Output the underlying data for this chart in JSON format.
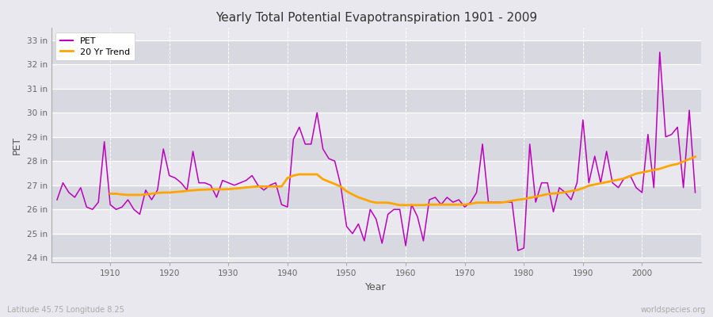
{
  "title": "Yearly Total Potential Evapotranspiration 1901 - 2009",
  "xlabel": "Year",
  "ylabel": "PET",
  "bottom_left": "Latitude 45.75 Longitude 8.25",
  "bottom_right": "worldspecies.org",
  "pet_color": "#bb00bb",
  "trend_color": "#ffa500",
  "bg_color": "#e8e8ee",
  "plot_bg_light": "#e8e8ee",
  "plot_bg_dark": "#d8d8e0",
  "ylim": [
    23.8,
    33.5
  ],
  "yticks": [
    24,
    25,
    26,
    27,
    28,
    29,
    30,
    31,
    32,
    33
  ],
  "ytick_labels": [
    "24 in",
    "25 in",
    "26 in",
    "27 in",
    "28 in",
    "29 in",
    "30 in",
    "31 in",
    "32 in",
    "33 in"
  ],
  "xlim": [
    1900,
    2010
  ],
  "xticks": [
    1910,
    1920,
    1930,
    1940,
    1950,
    1960,
    1970,
    1980,
    1990,
    2000
  ],
  "years": [
    1901,
    1902,
    1903,
    1904,
    1905,
    1906,
    1907,
    1908,
    1909,
    1910,
    1911,
    1912,
    1913,
    1914,
    1915,
    1916,
    1917,
    1918,
    1919,
    1920,
    1921,
    1922,
    1923,
    1924,
    1925,
    1926,
    1927,
    1928,
    1929,
    1930,
    1931,
    1932,
    1933,
    1934,
    1935,
    1936,
    1937,
    1938,
    1939,
    1940,
    1941,
    1942,
    1943,
    1944,
    1945,
    1946,
    1947,
    1948,
    1949,
    1950,
    1951,
    1952,
    1953,
    1954,
    1955,
    1956,
    1957,
    1958,
    1959,
    1960,
    1961,
    1962,
    1963,
    1964,
    1965,
    1966,
    1967,
    1968,
    1969,
    1970,
    1971,
    1972,
    1973,
    1974,
    1975,
    1976,
    1977,
    1978,
    1979,
    1980,
    1981,
    1982,
    1983,
    1984,
    1985,
    1986,
    1987,
    1988,
    1989,
    1990,
    1991,
    1992,
    1993,
    1994,
    1995,
    1996,
    1997,
    1998,
    1999,
    2000,
    2001,
    2002,
    2003,
    2004,
    2005,
    2006,
    2007,
    2008,
    2009
  ],
  "pet": [
    26.4,
    27.1,
    26.7,
    26.5,
    26.9,
    26.1,
    26.0,
    26.3,
    28.8,
    26.2,
    26.0,
    26.1,
    26.4,
    26.0,
    25.8,
    26.8,
    26.4,
    26.8,
    28.5,
    27.4,
    27.3,
    27.1,
    26.8,
    28.4,
    27.1,
    27.1,
    27.0,
    26.5,
    27.2,
    27.1,
    27.0,
    27.1,
    27.2,
    27.4,
    27.0,
    26.8,
    27.0,
    27.1,
    26.2,
    26.1,
    28.9,
    29.4,
    28.7,
    28.7,
    30.0,
    28.5,
    28.1,
    28.0,
    27.0,
    25.3,
    25.0,
    25.4,
    24.7,
    26.0,
    25.6,
    24.6,
    25.8,
    26.0,
    26.0,
    24.5,
    26.2,
    25.7,
    24.7,
    26.4,
    26.5,
    26.2,
    26.5,
    26.3,
    26.4,
    26.1,
    26.3,
    26.7,
    28.7,
    26.3,
    26.3,
    26.3,
    26.3,
    26.3,
    24.3,
    24.4,
    28.7,
    26.3,
    27.1,
    27.1,
    25.9,
    26.9,
    26.7,
    26.4,
    27.1,
    29.7,
    27.1,
    28.2,
    27.1,
    28.4,
    27.1,
    26.9,
    27.3,
    27.4,
    26.9,
    26.7,
    29.1,
    26.9,
    32.5,
    29.0,
    29.1,
    29.4,
    26.9,
    30.1,
    26.7
  ],
  "trend_years": [
    1910,
    1911,
    1912,
    1913,
    1914,
    1915,
    1916,
    1917,
    1918,
    1919,
    1920,
    1921,
    1922,
    1923,
    1924,
    1925,
    1926,
    1927,
    1928,
    1929,
    1930,
    1931,
    1932,
    1933,
    1934,
    1935,
    1936,
    1937,
    1938,
    1939,
    1940,
    1941,
    1942,
    1943,
    1944,
    1945,
    1946,
    1947,
    1948,
    1949,
    1950,
    1951,
    1952,
    1953,
    1954,
    1955,
    1956,
    1957,
    1958,
    1959,
    1960,
    1961,
    1962,
    1963,
    1964,
    1965,
    1966,
    1967,
    1968,
    1969,
    1970,
    1971,
    1972,
    1973,
    1974,
    1975,
    1976,
    1977,
    1978,
    1979,
    1980,
    1981,
    1982,
    1983,
    1984,
    1985,
    1986,
    1987,
    1988,
    1989,
    1990,
    1991,
    1992,
    1993,
    1994,
    1995,
    1996,
    1997,
    1998,
    1999,
    2000,
    2001,
    2002,
    2003,
    2004,
    2005,
    2006,
    2007,
    2008,
    2009
  ],
  "trend": [
    26.65,
    26.65,
    26.62,
    26.6,
    26.6,
    26.6,
    26.62,
    26.65,
    26.68,
    26.7,
    26.7,
    26.72,
    26.74,
    26.77,
    26.79,
    26.81,
    26.82,
    26.83,
    26.83,
    26.83,
    26.84,
    26.86,
    26.88,
    26.91,
    26.93,
    26.95,
    26.95,
    26.95,
    26.95,
    26.95,
    27.3,
    27.4,
    27.45,
    27.45,
    27.45,
    27.45,
    27.25,
    27.15,
    27.05,
    26.95,
    26.75,
    26.62,
    26.5,
    26.42,
    26.33,
    26.28,
    26.28,
    26.28,
    26.23,
    26.18,
    26.18,
    26.18,
    26.18,
    26.18,
    26.2,
    26.2,
    26.2,
    26.2,
    26.2,
    26.2,
    26.2,
    26.23,
    26.28,
    26.28,
    26.28,
    26.28,
    26.28,
    26.31,
    26.36,
    26.4,
    26.43,
    26.48,
    26.53,
    26.58,
    26.63,
    26.66,
    26.68,
    26.71,
    26.76,
    26.8,
    26.88,
    26.98,
    27.03,
    27.08,
    27.13,
    27.18,
    27.23,
    27.28,
    27.38,
    27.48,
    27.53,
    27.58,
    27.63,
    27.68,
    27.76,
    27.83,
    27.88,
    27.98,
    28.08,
    28.18
  ]
}
